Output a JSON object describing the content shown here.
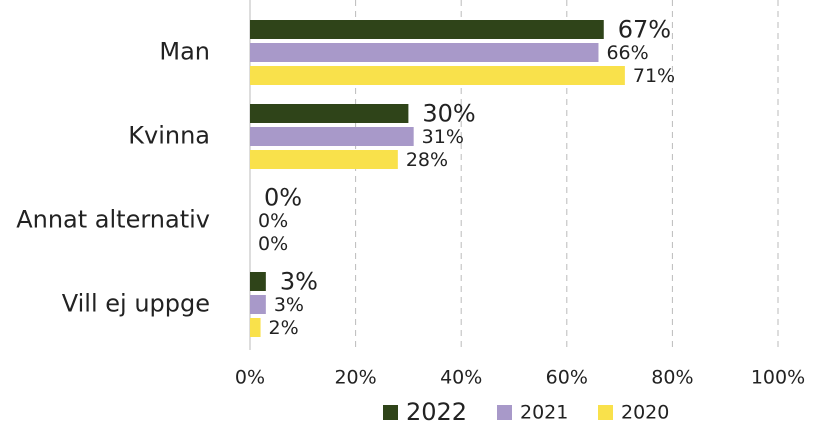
{
  "chart_data": {
    "type": "hbar",
    "categories": [
      "Man",
      "Kvinna",
      "Annat alternativ",
      "Vill ej uppge"
    ],
    "series": [
      {
        "name": "2022",
        "color": "#2f4419",
        "values": [
          67,
          30,
          0,
          3
        ],
        "value_labels": [
          "67%",
          "30%",
          "0%",
          "3%"
        ]
      },
      {
        "name": "2021",
        "color": "#a899c9",
        "values": [
          66,
          31,
          0,
          3
        ],
        "value_labels": [
          "66%",
          "31%",
          "0%",
          "3%"
        ]
      },
      {
        "name": "2020",
        "color": "#f9e14b",
        "values": [
          71,
          28,
          0,
          2
        ],
        "value_labels": [
          "71%",
          "28%",
          "0%",
          "2%"
        ]
      }
    ],
    "xlim": [
      0,
      100
    ],
    "xticks": [
      {
        "value": 0,
        "label": "0%"
      },
      {
        "value": 20,
        "label": "20%"
      },
      {
        "value": 40,
        "label": "40%"
      },
      {
        "value": 60,
        "label": "60%"
      },
      {
        "value": 80,
        "label": "80%"
      },
      {
        "value": 100,
        "label": "100%"
      }
    ],
    "grid": true,
    "legend": "bottom"
  }
}
